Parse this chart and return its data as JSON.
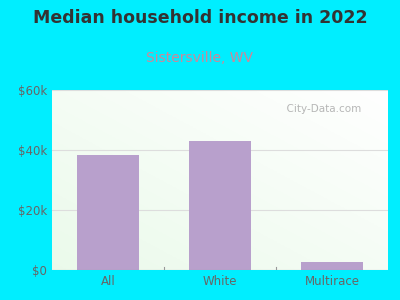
{
  "title": "Median household income in 2022",
  "subtitle": "Sistersville, WV",
  "categories": [
    "All",
    "White",
    "Multirace"
  ],
  "values": [
    38500,
    43000,
    2800
  ],
  "bar_color": "#b8a0cc",
  "title_fontsize": 12.5,
  "subtitle_fontsize": 10,
  "subtitle_color": "#cc8899",
  "tick_label_color": "#666666",
  "background_outer": "#00eeff",
  "ylim": [
    0,
    60000
  ],
  "yticks": [
    0,
    20000,
    40000,
    60000
  ],
  "ytick_labels": [
    "$0",
    "$20k",
    "$40k",
    "$60k"
  ],
  "watermark_text": "  City-Data.com",
  "title_color": "#333333",
  "grid_color": "#dddddd"
}
